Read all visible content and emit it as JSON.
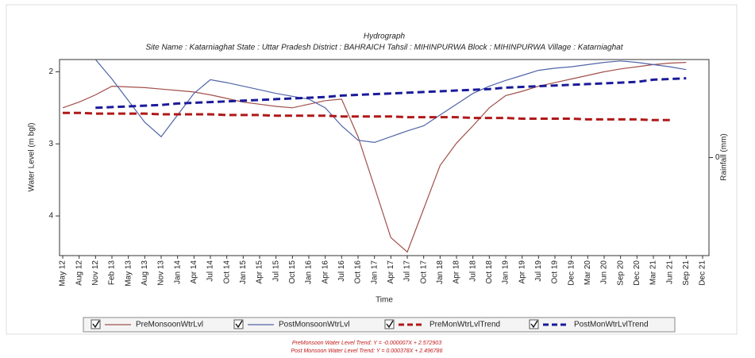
{
  "chart_data": {
    "type": "line",
    "title": "Hydrograph",
    "subtitle": "Site Name : Katarniaghat  State : Uttar Pradesh District : BAHRAICH  Tahsil : MIHINPURWA  Block : MIHINPURWA Village : Katarniaghat",
    "y_label": "Water Level (m bgl)",
    "y2_label": "Rainfall (mm)",
    "x_label": "Time",
    "categories": [
      "May 12",
      "Aug 12",
      "Nov 12",
      "Feb 13",
      "May 13",
      "Aug 13",
      "Nov 13",
      "Jan 14",
      "Apr 14",
      "Jul 14",
      "Oct 14",
      "Jan 15",
      "Apr 15",
      "Jul 15",
      "Oct 15",
      "Jan 16",
      "Apr 16",
      "Jul 16",
      "Oct 16",
      "Jan 17",
      "Apr 17",
      "Jul 17",
      "Oct 17",
      "Jan 18",
      "Apr 18",
      "Jul 18",
      "Oct 18",
      "Jan 19",
      "Apr 19",
      "Jul 19",
      "Oct 19",
      "Dec 19",
      "Mar 20",
      "Jun 20",
      "Sep 20",
      "Dec 20",
      "Mar 21",
      "Jun 21",
      "Sep 21",
      "Dec 21"
    ],
    "ylim": [
      1.83,
      4.55
    ],
    "y_inverted": true,
    "yticks": [
      2,
      3,
      4
    ],
    "y2lim": [
      -1,
      1
    ],
    "y2ticks": [
      0
    ],
    "series": [
      {
        "name": "PreMonsoonWtrLvl",
        "color": "#a0504a",
        "dash": false,
        "values": [
          2.5,
          2.42,
          2.32,
          2.2,
          2.21,
          2.22,
          2.24,
          2.26,
          2.28,
          2.32,
          2.37,
          2.42,
          2.45,
          2.48,
          2.5,
          2.45,
          2.4,
          2.38,
          2.9,
          3.6,
          4.3,
          4.5,
          3.9,
          3.3,
          2.99,
          2.75,
          2.5,
          2.33,
          2.27,
          2.2,
          2.15,
          2.1,
          2.05,
          2.0,
          1.96,
          1.93,
          1.9,
          1.88,
          1.87,
          null
        ]
      },
      {
        "name": "PostMonsoonWtrLvl",
        "color": "#5064a8",
        "dash": false,
        "values": [
          null,
          null,
          1.83,
          2.1,
          2.4,
          2.7,
          2.9,
          2.6,
          2.3,
          2.11,
          2.15,
          2.2,
          2.25,
          2.3,
          2.34,
          2.38,
          2.5,
          2.75,
          2.95,
          2.98,
          2.9,
          2.82,
          2.75,
          2.6,
          2.45,
          2.3,
          2.2,
          2.12,
          2.05,
          1.98,
          1.95,
          1.93,
          1.9,
          1.87,
          1.85,
          1.87,
          1.9,
          1.93,
          1.97,
          null
        ]
      },
      {
        "name": "PreMonWtrLvlTrend",
        "color": "#b01818",
        "dash": true,
        "values": [
          2.57,
          2.57,
          2.58,
          2.58,
          2.58,
          2.58,
          2.59,
          2.59,
          2.59,
          2.59,
          2.6,
          2.6,
          2.6,
          2.61,
          2.61,
          2.61,
          2.61,
          2.62,
          2.62,
          2.62,
          2.62,
          2.63,
          2.63,
          2.63,
          2.63,
          2.64,
          2.64,
          2.64,
          2.65,
          2.65,
          2.65,
          2.65,
          2.66,
          2.66,
          2.66,
          2.66,
          2.67,
          2.67,
          null,
          null
        ]
      },
      {
        "name": "PostMonWtrLvlTrend",
        "color": "#1a1a9a",
        "dash": true,
        "values": [
          null,
          null,
          2.5,
          2.49,
          2.48,
          2.47,
          2.46,
          2.44,
          2.43,
          2.42,
          2.41,
          2.4,
          2.39,
          2.38,
          2.37,
          2.36,
          2.35,
          2.33,
          2.32,
          2.31,
          2.3,
          2.29,
          2.28,
          2.27,
          2.26,
          2.25,
          2.24,
          2.22,
          2.21,
          2.2,
          2.19,
          2.18,
          2.17,
          2.16,
          2.15,
          2.14,
          2.11,
          2.1,
          2.09,
          null
        ]
      }
    ],
    "equations": [
      "PreMonsoon Water Level Trend: Y = -0.000007X + 2.572903",
      "Post Monsoon Water Level Trend: Y = 0.000378X + 2.496786"
    ]
  }
}
